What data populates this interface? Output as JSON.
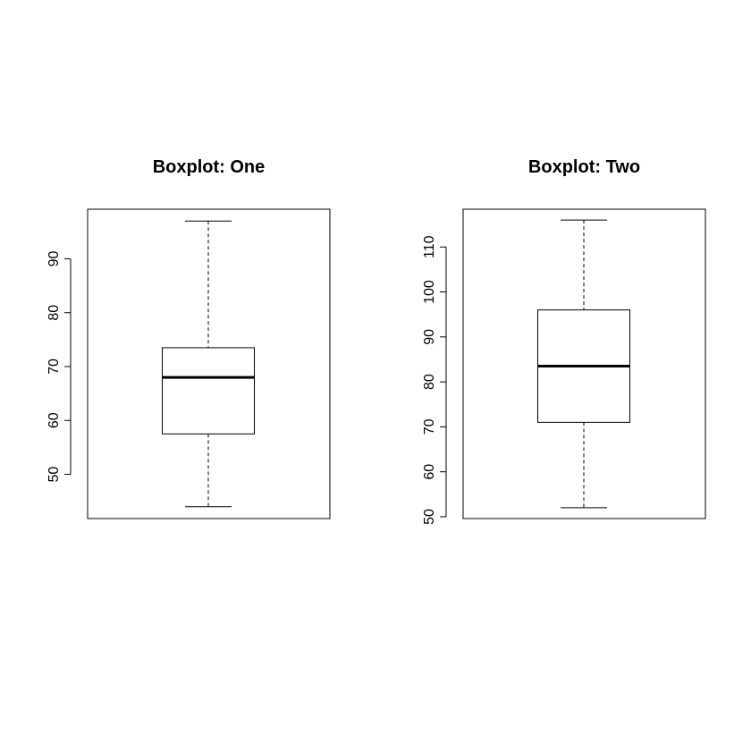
{
  "chart_data": [
    {
      "type": "boxplot",
      "title": "Boxplot: One",
      "xlabel": "",
      "ylabel": "",
      "ylim": [
        41.8,
        99.2
      ],
      "yticks": [
        50,
        60,
        70,
        80,
        90
      ],
      "stats": {
        "whisker_low": 44,
        "q1": 57.5,
        "median": 68,
        "q3": 73.5,
        "whisker_high": 97
      },
      "grid": false
    },
    {
      "type": "boxplot",
      "title": "Boxplot: Two",
      "xlabel": "",
      "ylabel": "",
      "ylim": [
        49.6,
        118.4
      ],
      "yticks": [
        50,
        60,
        70,
        80,
        90,
        100,
        110
      ],
      "stats": {
        "whisker_low": 52,
        "q1": 71,
        "median": 83.5,
        "q3": 96,
        "whisker_high": 116
      },
      "grid": false
    }
  ]
}
